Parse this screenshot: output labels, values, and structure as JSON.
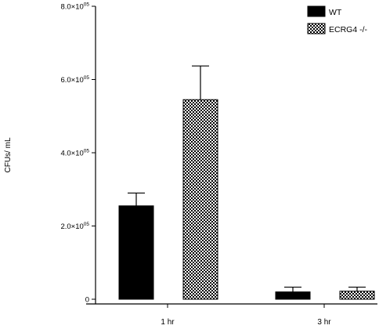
{
  "chart_data": {
    "type": "bar",
    "categories": [
      "1 hr",
      "3 hr"
    ],
    "series": [
      {
        "name": "WT",
        "values": [
          255000,
          20000
        ],
        "errors": [
          35000,
          13000
        ],
        "fill": "solid",
        "color": "#000000"
      },
      {
        "name": "ECRG4 -/-",
        "values": [
          545000,
          22000
        ],
        "errors": [
          92000,
          11000
        ],
        "fill": "checkered",
        "color": "#000000"
      }
    ],
    "ylabel": "CFUs/ mL",
    "xlabel": "",
    "ylim": [
      0,
      800000
    ],
    "yticks": [
      {
        "value": 0,
        "mantissa": "0",
        "exp": ""
      },
      {
        "value": 200000,
        "mantissa": "2.0×10",
        "exp": "05"
      },
      {
        "value": 400000,
        "mantissa": "4.0×10",
        "exp": "05"
      },
      {
        "value": 600000,
        "mantissa": "6.0×10",
        "exp": "05"
      },
      {
        "value": 800000,
        "mantissa": "8.0×10",
        "exp": "05"
      }
    ],
    "legend_position": "top-right",
    "grid": false
  }
}
